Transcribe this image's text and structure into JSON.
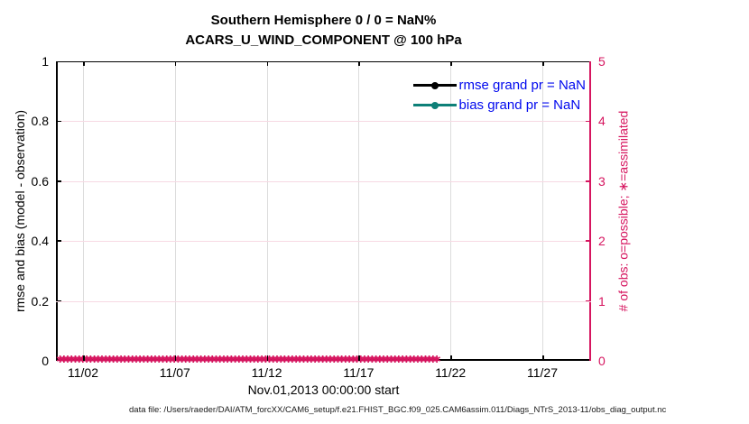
{
  "title": {
    "line1": "Southern Hemisphere 0 / 0 = NaN%",
    "line2": "ACARS_U_WIND_COMPONENT @ 100 hPa"
  },
  "axes": {
    "left": {
      "label": "rmse and bias (model - observation)",
      "ticks": [
        "0",
        "0.2",
        "0.4",
        "0.6",
        "0.8",
        "1"
      ],
      "range": [
        0,
        1
      ],
      "color": "#000000"
    },
    "right": {
      "label": "# of obs: o=possible; ∗=assimilated",
      "ticks": [
        "0",
        "1",
        "2",
        "3",
        "4",
        "5"
      ],
      "range": [
        0,
        5
      ],
      "color": "#d6155f"
    },
    "x": {
      "label": "Nov.01,2013 00:00:00 start",
      "ticks": [
        "11/02",
        "11/07",
        "11/12",
        "11/17",
        "11/22",
        "11/27"
      ]
    }
  },
  "legend": {
    "items": [
      {
        "label": "rmse grand pr = NaN",
        "line_color": "#000000",
        "marker": "circle"
      },
      {
        "label": "bias grand pr = NaN",
        "line_color": "#0d8078",
        "marker": "circle"
      }
    ],
    "text_color": "#0008ee",
    "position": "top-right inside"
  },
  "obs_band": {
    "marker_glyph": "✱",
    "color": "#d6155f",
    "count": 100,
    "meaning": "assimilated/possible obs counts, all zero along the time axis"
  },
  "footer": {
    "datafile": "data file: /Users/raeder/DAI/ATM_forcXX/CAM6_setup/f.e21.FHIST_BGC.f09_025.CAM6assim.011/Diags_NTrS_2013-11/obs_diag_output.nc"
  },
  "chart_data": {
    "type": "line",
    "title": "Southern Hemisphere 0 / 0 = NaN% — ACARS_U_WIND_COMPONENT @ 100 hPa",
    "x_ticks": [
      "11/02",
      "11/07",
      "11/12",
      "11/17",
      "11/22",
      "11/27"
    ],
    "x_range": [
      "2013-11-01 00:00:00",
      "2013-11-30"
    ],
    "xlabel": "Nov.01,2013 00:00:00 start",
    "left_ylabel": "rmse and bias (model - observation)",
    "left_ylim": [
      0,
      1
    ],
    "right_ylabel": "# of obs: o=possible; ∗=assimilated",
    "right_ylim": [
      0,
      5
    ],
    "grid": true,
    "legend_position": "top-right inside",
    "series": [
      {
        "name": "rmse grand pr",
        "axis": "left",
        "color": "#000000",
        "values": "all NaN (nothing plotted)"
      },
      {
        "name": "bias grand pr",
        "axis": "left",
        "color": "#0d8078",
        "values": "all NaN (nothing plotted)"
      },
      {
        "name": "# of obs possible (o)",
        "axis": "right",
        "color": "#d6155f",
        "value_constant": 0
      },
      {
        "name": "# of obs assimilated (∗)",
        "axis": "right",
        "color": "#d6155f",
        "value_constant": 0
      }
    ]
  },
  "layout_colors": {
    "grid_vertical": "#dcdcdc",
    "grid_horizontal": "#f7d9e3"
  }
}
